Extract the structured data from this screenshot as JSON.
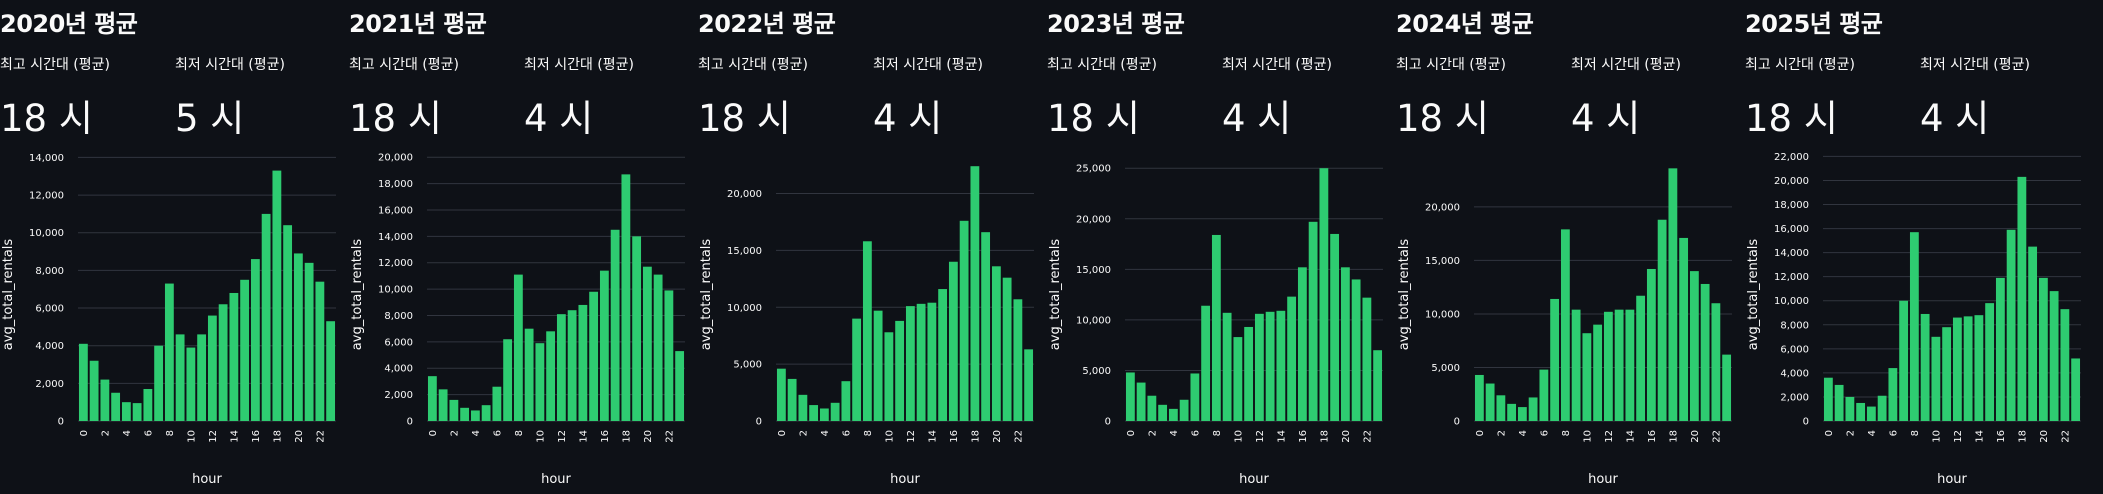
{
  "colors": {
    "background": "#0e1117",
    "bar": "#2ecc71",
    "grid": "#31353f",
    "text": "#fafafa"
  },
  "panels": [
    {
      "title": "2020년 평균",
      "peak_label": "최고 시간대 (평균)",
      "peak_value": "18 시",
      "low_label": "최저 시간대 (평균)",
      "low_value": "5 시",
      "chart_data": {
        "type": "bar",
        "xlabel": "hour",
        "ylabel": "avg_total_rentals",
        "x": [
          0,
          1,
          2,
          3,
          4,
          5,
          6,
          7,
          8,
          9,
          10,
          11,
          12,
          13,
          14,
          15,
          16,
          17,
          18,
          19,
          20,
          21,
          22,
          23
        ],
        "values": [
          4100,
          3200,
          2200,
          1500,
          1000,
          950,
          1700,
          4000,
          7300,
          4600,
          3900,
          4600,
          5600,
          6200,
          6800,
          7500,
          8600,
          11000,
          13300,
          10400,
          8900,
          8400,
          7400,
          5300
        ],
        "ylim": [
          0,
          14500
        ],
        "yticks": [
          0,
          2000,
          4000,
          6000,
          8000,
          10000,
          12000,
          14000
        ],
        "ytick_labels": [
          "0",
          "2,000",
          "4,000",
          "6,000",
          "8,000",
          "10,000",
          "12,000",
          "14,000"
        ],
        "xtick_labels": [
          "0",
          "2",
          "4",
          "6",
          "8",
          "10",
          "12",
          "14",
          "16",
          "18",
          "20",
          "22"
        ]
      }
    },
    {
      "title": "2021년 평균",
      "peak_label": "최고 시간대 (평균)",
      "peak_value": "18 시",
      "low_label": "최저 시간대 (평균)",
      "low_value": "4 시",
      "chart_data": {
        "type": "bar",
        "xlabel": "hour",
        "ylabel": "avg_total_rentals",
        "x": [
          0,
          1,
          2,
          3,
          4,
          5,
          6,
          7,
          8,
          9,
          10,
          11,
          12,
          13,
          14,
          15,
          16,
          17,
          18,
          19,
          20,
          21,
          22,
          23
        ],
        "values": [
          3400,
          2400,
          1600,
          1000,
          800,
          1200,
          2600,
          6200,
          11100,
          7000,
          5900,
          6800,
          8100,
          8400,
          8800,
          9800,
          11400,
          14500,
          18700,
          14000,
          11700,
          11100,
          9900,
          5300
        ],
        "ylim": [
          0,
          20700
        ],
        "yticks": [
          0,
          2000,
          4000,
          6000,
          8000,
          10000,
          12000,
          14000,
          16000,
          18000,
          20000
        ],
        "ytick_labels": [
          "0",
          "2,000",
          "4,000",
          "6,000",
          "8,000",
          "10,000",
          "12,000",
          "14,000",
          "16,000",
          "18,000",
          "20,000"
        ],
        "xtick_labels": [
          "0",
          "2",
          "4",
          "6",
          "8",
          "10",
          "12",
          "14",
          "16",
          "18",
          "20",
          "22"
        ]
      }
    },
    {
      "title": "2022년 평균",
      "peak_label": "최고 시간대 (평균)",
      "peak_value": "18 시",
      "low_label": "최저 시간대 (평균)",
      "low_value": "4 시",
      "chart_data": {
        "type": "bar",
        "xlabel": "hour",
        "ylabel": "avg_total_rentals",
        "x": [
          0,
          1,
          2,
          3,
          4,
          5,
          6,
          7,
          8,
          9,
          10,
          11,
          12,
          13,
          14,
          15,
          16,
          17,
          18,
          19,
          20,
          21,
          22,
          23
        ],
        "values": [
          4600,
          3700,
          2300,
          1400,
          1100,
          1600,
          3500,
          9000,
          15800,
          9700,
          7800,
          8800,
          10100,
          10300,
          10400,
          11600,
          14000,
          17600,
          22400,
          16600,
          13600,
          12600,
          10700,
          6300
        ],
        "ylim": [
          0,
          24000
        ],
        "yticks": [
          0,
          5000,
          10000,
          15000,
          20000
        ],
        "ytick_labels": [
          "0",
          "5,000",
          "10,000",
          "15,000",
          "20,000"
        ],
        "xtick_labels": [
          "0",
          "2",
          "4",
          "6",
          "8",
          "10",
          "12",
          "14",
          "16",
          "18",
          "20",
          "22"
        ]
      }
    },
    {
      "title": "2023년 평균",
      "peak_label": "최고 시간대 (평균)",
      "peak_value": "18 시",
      "low_label": "최저 시간대 (평균)",
      "low_value": "4 시",
      "chart_data": {
        "type": "bar",
        "xlabel": "hour",
        "ylabel": "avg_total_rentals",
        "x": [
          0,
          1,
          2,
          3,
          4,
          5,
          6,
          7,
          8,
          9,
          10,
          11,
          12,
          13,
          14,
          15,
          16,
          17,
          18,
          19,
          20,
          21,
          22,
          23
        ],
        "values": [
          4800,
          3800,
          2500,
          1600,
          1200,
          2100,
          4700,
          11400,
          18400,
          10700,
          8300,
          9300,
          10600,
          10800,
          10900,
          12300,
          15200,
          19700,
          25000,
          18500,
          15200,
          14000,
          12200,
          7000
        ],
        "ylim": [
          0,
          27000
        ],
        "yticks": [
          0,
          5000,
          10000,
          15000,
          20000,
          25000
        ],
        "ytick_labels": [
          "0",
          "5,000",
          "10,000",
          "15,000",
          "20,000",
          "25,000"
        ],
        "xtick_labels": [
          "0",
          "2",
          "4",
          "6",
          "8",
          "10",
          "12",
          "14",
          "16",
          "18",
          "20",
          "22"
        ]
      }
    },
    {
      "title": "2024년 평균",
      "peak_label": "최고 시간대 (평균)",
      "peak_value": "18 시",
      "low_label": "최저 시간대 (평균)",
      "low_value": "4 시",
      "chart_data": {
        "type": "bar",
        "xlabel": "hour",
        "ylabel": "avg_total_rentals",
        "x": [
          0,
          1,
          2,
          3,
          4,
          5,
          6,
          7,
          8,
          9,
          10,
          11,
          12,
          13,
          14,
          15,
          16,
          17,
          18,
          19,
          20,
          21,
          22,
          23
        ],
        "values": [
          4300,
          3500,
          2400,
          1600,
          1300,
          2200,
          4800,
          11400,
          17900,
          10400,
          8200,
          9000,
          10200,
          10400,
          10400,
          11700,
          14200,
          18800,
          23600,
          17100,
          14000,
          12800,
          11000,
          6200
        ],
        "ylim": [
          0,
          25500
        ],
        "yticks": [
          0,
          5000,
          10000,
          15000,
          20000
        ],
        "ytick_labels": [
          "0",
          "5,000",
          "10,000",
          "15,000",
          "20,000"
        ],
        "xtick_labels": [
          "0",
          "2",
          "4",
          "6",
          "8",
          "10",
          "12",
          "14",
          "16",
          "18",
          "20",
          "22"
        ]
      }
    },
    {
      "title": "2025년 평균",
      "peak_label": "최고 시간대 (평균)",
      "peak_value": "18 시",
      "low_label": "최저 시간대 (평균)",
      "low_value": "4 시",
      "chart_data": {
        "type": "bar",
        "xlabel": "hour",
        "ylabel": "avg_total_rentals",
        "x": [
          0,
          1,
          2,
          3,
          4,
          5,
          6,
          7,
          8,
          9,
          10,
          11,
          12,
          13,
          14,
          15,
          16,
          17,
          18,
          19,
          20,
          21,
          22,
          23
        ],
        "values": [
          3600,
          3000,
          2000,
          1500,
          1200,
          2100,
          4400,
          10000,
          15700,
          8900,
          7000,
          7800,
          8600,
          8700,
          8800,
          9800,
          11900,
          15900,
          20300,
          14500,
          11900,
          10800,
          9300,
          5200
        ],
        "ylim": [
          0,
          22700
        ],
        "yticks": [
          0,
          2000,
          4000,
          6000,
          8000,
          10000,
          12000,
          14000,
          16000,
          18000,
          20000,
          22000
        ],
        "ytick_labels": [
          "0",
          "2,000",
          "4,000",
          "6,000",
          "8,000",
          "10,000",
          "12,000",
          "14,000",
          "16,000",
          "18,000",
          "20,000",
          "22,000"
        ],
        "xtick_labels": [
          "0",
          "2",
          "4",
          "6",
          "8",
          "10",
          "12",
          "14",
          "16",
          "18",
          "20",
          "22"
        ]
      }
    }
  ]
}
